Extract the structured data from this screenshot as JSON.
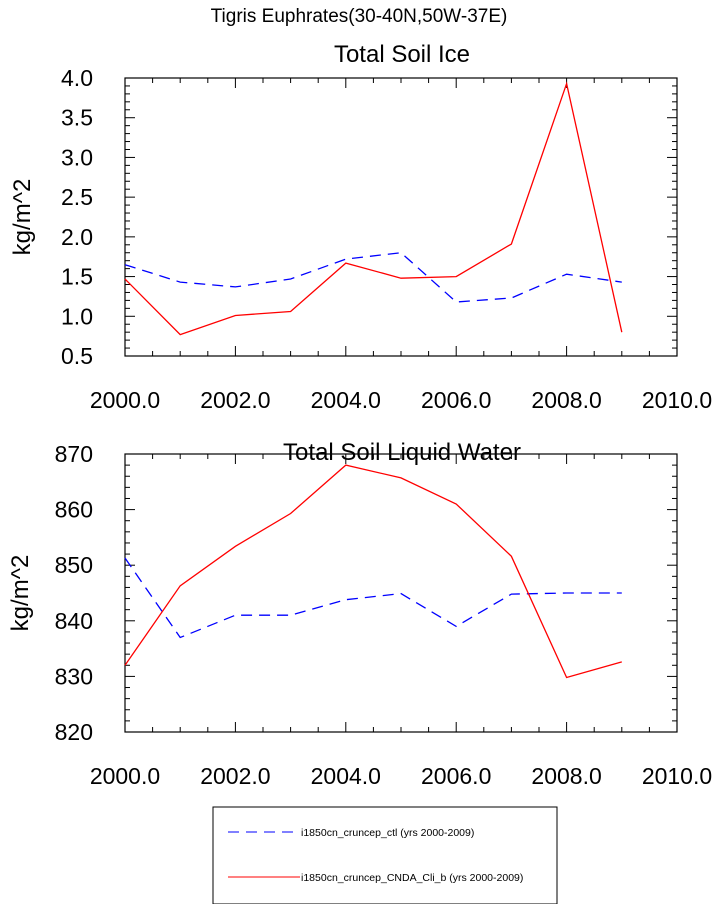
{
  "figure": {
    "title": "Tigris Euphrates(30-40N,50W-37E)"
  },
  "chart_data": [
    {
      "type": "line",
      "title": "Total Soil Ice",
      "xlabel": "",
      "ylabel": "kg/m^2",
      "xlim": [
        2000,
        2010
      ],
      "ylim": [
        0.5,
        4.0
      ],
      "x_ticks": [
        "2000.0",
        "2002.0",
        "2004.0",
        "2006.0",
        "2008.0",
        "2010.0"
      ],
      "y_ticks": [
        "0.5",
        "1.0",
        "1.5",
        "2.0",
        "2.5",
        "3.0",
        "3.5",
        "4.0"
      ],
      "x": [
        2000,
        2001,
        2002,
        2003,
        2004,
        2005,
        2006,
        2007,
        2008,
        2009
      ],
      "series": [
        {
          "name": "i1850cn_cruncep_ctl (yrs 2000-2009)",
          "color": "#0000ff",
          "dash": "dashed",
          "values": [
            1.65,
            1.43,
            1.37,
            1.47,
            1.72,
            1.8,
            1.18,
            1.23,
            1.53,
            1.43
          ]
        },
        {
          "name": "i1850cn_cruncep_CNDA_Cli_b (yrs 2000-2009)",
          "color": "#ff0000",
          "dash": "solid",
          "values": [
            1.47,
            0.77,
            1.01,
            1.06,
            1.67,
            1.48,
            1.5,
            1.91,
            3.93,
            0.8
          ]
        }
      ],
      "grid": false
    },
    {
      "type": "line",
      "title": "Total Soil Liquid Water",
      "xlabel": "",
      "ylabel": "kg/m^2",
      "xlim": [
        2000,
        2010
      ],
      "ylim": [
        820,
        870
      ],
      "x_ticks": [
        "2000.0",
        "2002.0",
        "2004.0",
        "2006.0",
        "2008.0",
        "2010.0"
      ],
      "y_ticks": [
        "820",
        "830",
        "840",
        "850",
        "860",
        "870"
      ],
      "x": [
        2000,
        2001,
        2002,
        2003,
        2004,
        2005,
        2006,
        2007,
        2008,
        2009
      ],
      "series": [
        {
          "name": "i1850cn_cruncep_ctl (yrs 2000-2009)",
          "color": "#0000ff",
          "dash": "dashed",
          "values": [
            851.3,
            837.0,
            841.0,
            841.0,
            843.8,
            844.9,
            839.0,
            844.8,
            845.0,
            845.0
          ]
        },
        {
          "name": "i1850cn_cruncep_CNDA_Cli_b (yrs 2000-2009)",
          "color": "#ff0000",
          "dash": "solid",
          "values": [
            832.0,
            846.3,
            853.4,
            859.3,
            868.0,
            865.7,
            861.0,
            851.6,
            829.8,
            832.6
          ]
        }
      ],
      "grid": false
    }
  ],
  "legend": {
    "placement": "bottom",
    "entries": [
      {
        "label": "i1850cn_cruncep_ctl (yrs 2000-2009)",
        "color": "#0000ff",
        "dash": "dashed"
      },
      {
        "label": "i1850cn_cruncep_CNDA_Cli_b (yrs 2000-2009)",
        "color": "#ff0000",
        "dash": "solid"
      }
    ]
  }
}
